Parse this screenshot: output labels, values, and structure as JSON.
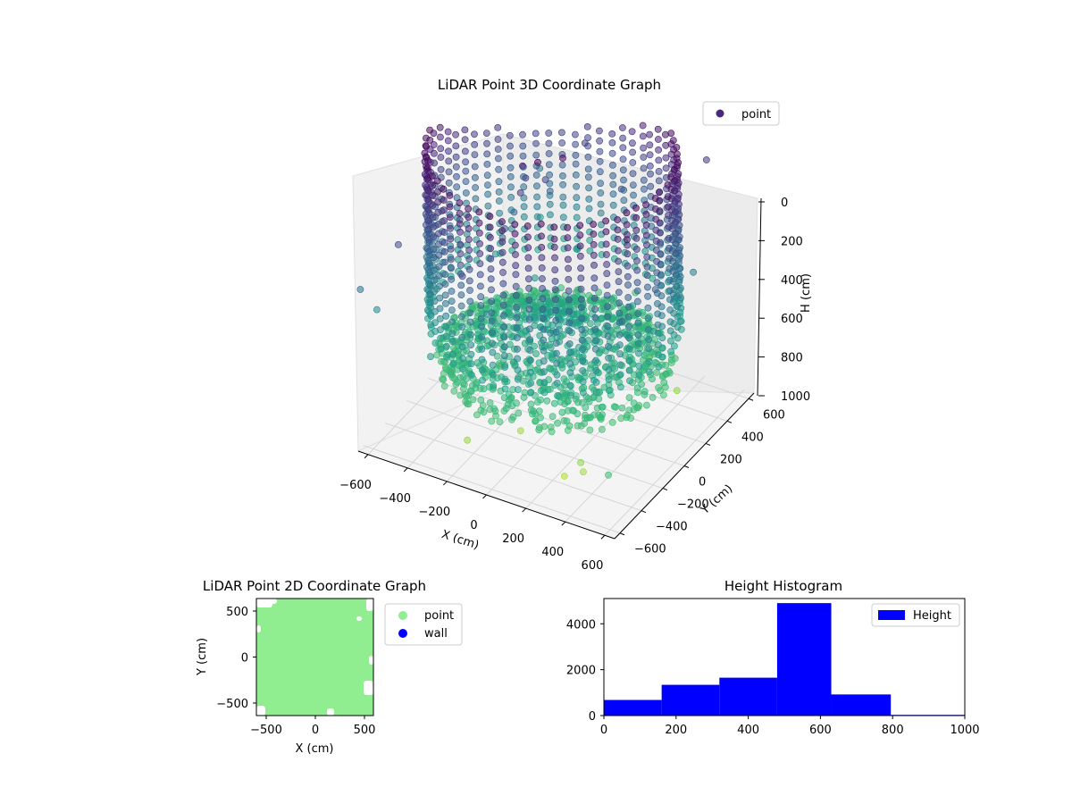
{
  "figure": {
    "background": "#ffffff"
  },
  "chart_data": [
    {
      "type": "scatter",
      "projection": "3d",
      "title": "LiDAR Point 3D Coordinate Graph",
      "xlabel": "X (cm)",
      "ylabel": "Y (cm)",
      "zlabel": "H (cm)",
      "xticks": [
        "−600",
        "−400",
        "−200",
        "0",
        "200",
        "400",
        "600"
      ],
      "yticks": [
        "−600",
        "−400",
        "−200",
        "0",
        "200",
        "400",
        "600"
      ],
      "zticks": [
        "0",
        "200",
        "400",
        "600",
        "800",
        "1000"
      ],
      "xlim": [
        -650,
        650
      ],
      "ylim": [
        -650,
        650
      ],
      "zlim": [
        1000,
        0
      ],
      "z_inverted": true,
      "colormap": "viridis",
      "legend": {
        "entries": [
          {
            "label": "point",
            "color": "#482878"
          }
        ],
        "placement": "top-right"
      },
      "description_note_omitted": true,
      "series": [
        {
          "name": "point",
          "shape": "ring-wall",
          "radius_cm": 560,
          "h_range": [
            0,
            700
          ]
        },
        {
          "name": "point",
          "shape": "floor-bowl",
          "h_range": [
            600,
            850
          ]
        }
      ]
    },
    {
      "type": "scatter",
      "title": "LiDAR Point 2D Coordinate Graph",
      "xlabel": "X (cm)",
      "ylabel": "Y (cm)",
      "xticks": [
        "−500",
        "0",
        "500"
      ],
      "yticks": [
        "500",
        "0",
        "−500"
      ],
      "xlim": [
        -620,
        620
      ],
      "ylim": [
        -620,
        620
      ],
      "grid": false,
      "legend": {
        "placement": "outside-right",
        "entries": [
          {
            "label": "point",
            "color": "#90ee90"
          },
          {
            "label": "wall",
            "color": "#0000ff"
          }
        ]
      }
    },
    {
      "type": "bar",
      "subtype": "histogram",
      "title": "Height Histogram",
      "xticks": [
        "0",
        "200",
        "400",
        "600",
        "800",
        "1000"
      ],
      "yticks": [
        "0",
        "2000",
        "4000"
      ],
      "xlim": [
        0,
        1000
      ],
      "ylim": [
        0,
        5100
      ],
      "color": "#0000ff",
      "legend": {
        "placement": "top-right",
        "entries": [
          {
            "label": "Height",
            "color": "#0000ff"
          }
        ]
      },
      "bins": [
        {
          "x0": 0,
          "x1": 160,
          "count": 680
        },
        {
          "x0": 160,
          "x1": 320,
          "count": 1340
        },
        {
          "x0": 320,
          "x1": 480,
          "count": 1650
        },
        {
          "x0": 480,
          "x1": 630,
          "count": 4900
        },
        {
          "x0": 630,
          "x1": 795,
          "count": 920
        },
        {
          "x0": 795,
          "x1": 1000,
          "count": 30
        }
      ]
    }
  ]
}
